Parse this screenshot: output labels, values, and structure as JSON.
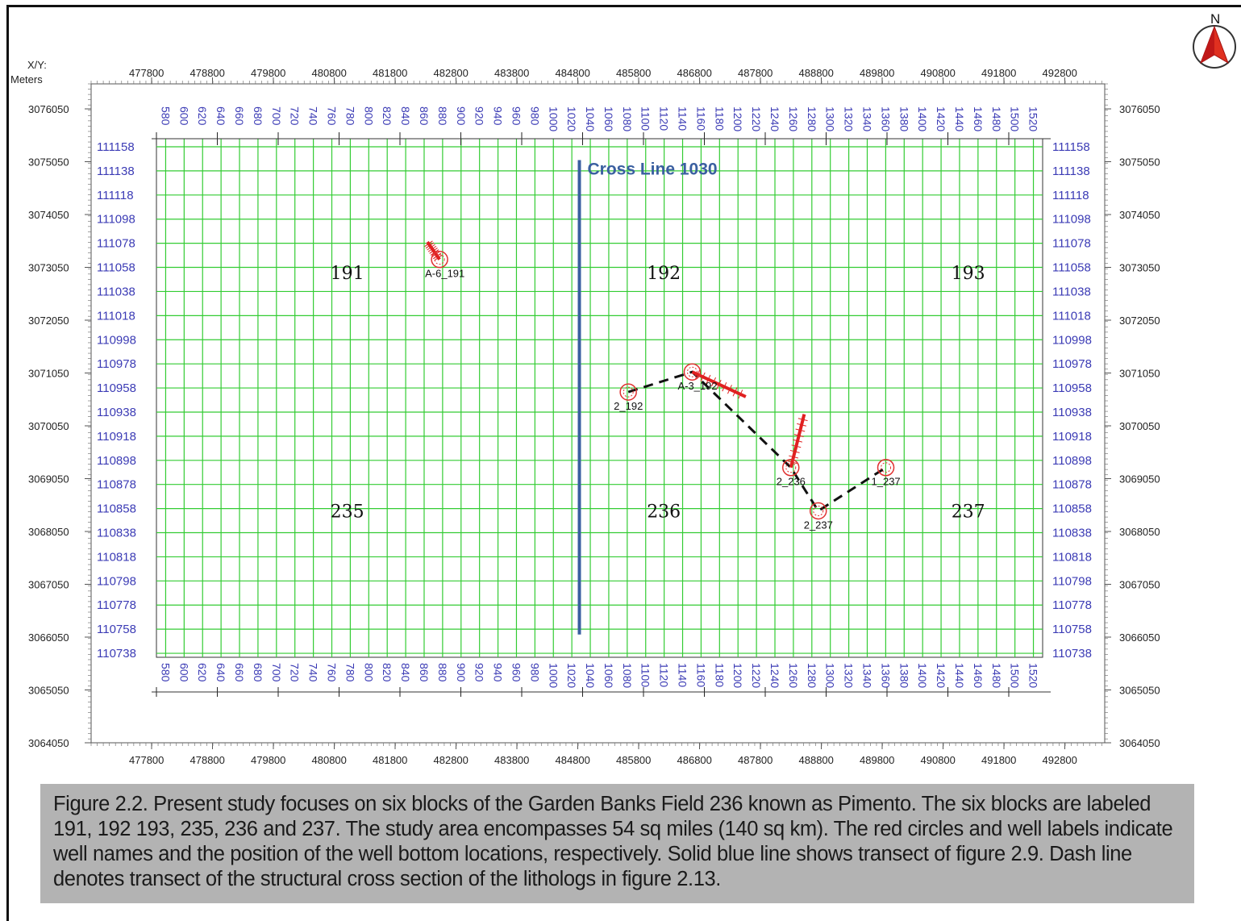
{
  "map": {
    "axis_unit_label": "X/Y:",
    "axis_unit_label2": "Meters",
    "north_label": "N",
    "x_ticks": [
      "477800",
      "478800",
      "479800",
      "480800",
      "481800",
      "482800",
      "483800",
      "484800",
      "485800",
      "486800",
      "487800",
      "488800",
      "489800",
      "490800",
      "491800",
      "492800"
    ],
    "y_ticks": [
      "3076050",
      "3075050",
      "3074050",
      "3073050",
      "3072050",
      "3071050",
      "3070050",
      "3069050",
      "3068050",
      "3067050",
      "3066050",
      "3065050",
      "3064050"
    ],
    "inline_labels": [
      "111158",
      "111138",
      "111118",
      "111098",
      "111078",
      "111058",
      "111038",
      "111018",
      "110998",
      "110978",
      "110958",
      "110938",
      "110918",
      "110898",
      "110878",
      "110858",
      "110838",
      "110818",
      "110798",
      "110778",
      "110758",
      "110738"
    ],
    "crossline_labels": [
      "580",
      "600",
      "620",
      "640",
      "660",
      "680",
      "700",
      "720",
      "740",
      "760",
      "780",
      "800",
      "820",
      "840",
      "860",
      "880",
      "900",
      "920",
      "940",
      "960",
      "980",
      "1000",
      "1020",
      "1040",
      "1060",
      "1080",
      "1100",
      "1120",
      "1140",
      "1160",
      "1180",
      "1200",
      "1220",
      "1240",
      "1260",
      "1280",
      "1300",
      "1320",
      "1340",
      "1360",
      "1380",
      "1400",
      "1420",
      "1440",
      "1460",
      "1480",
      "1500",
      "1520"
    ],
    "blocks": [
      {
        "name": "191",
        "x": 481000,
        "y": 3072950
      },
      {
        "name": "192",
        "x": 486200,
        "y": 3072950
      },
      {
        "name": "193",
        "x": 491200,
        "y": 3072950
      },
      {
        "name": "235",
        "x": 481000,
        "y": 3068440
      },
      {
        "name": "236",
        "x": 486200,
        "y": 3068440
      },
      {
        "name": "237",
        "x": 491200,
        "y": 3068440
      }
    ],
    "cross_line": {
      "label": "Cross Line 1030",
      "x": 484800,
      "y_top": 3075050,
      "y_bottom": 3066100
    },
    "wells": [
      {
        "name": "A-6_191",
        "x": 482530,
        "y": 3073200,
        "track_to_x": 482330,
        "track_to_y": 3073530
      },
      {
        "name": "2_192",
        "x": 485630,
        "y": 3070690
      },
      {
        "name": "A-3_192",
        "x": 486680,
        "y": 3071070,
        "track_to_x": 487560,
        "track_to_y": 3070600
      },
      {
        "name": "2_236",
        "x": 488300,
        "y": 3069260,
        "track_to_x": 488520,
        "track_to_y": 3070270
      },
      {
        "name": "2_237",
        "x": 488750,
        "y": 3068440
      },
      {
        "name": "1_237",
        "x": 489860,
        "y": 3069260
      }
    ],
    "transect_wells": [
      "2_192",
      "A-3_192",
      "2_236",
      "2_237",
      "1_237"
    ],
    "colors": {
      "grid": "#33cc33",
      "seismic_label": "#3b3bb5",
      "cross_line": "#3a5fa0",
      "well": "#e03030",
      "track": "#e02020",
      "transect": "#111111",
      "north_arrow": "#e03020"
    }
  },
  "caption": {
    "text": "Figure 2.2. Present study focuses on six blocks of the Garden Banks Field 236 known as Pimento. The six blocks are labeled 191, 192 193, 235, 236 and 237.  The study area encompasses 54 sq miles (140 sq km). The red circles and well labels indicate well names and the position of the well bottom locations, respectively.  Solid blue line shows transect of figure 2.9.  Dash line denotes transect of the structural cross section of the lithologs in figure 2.13."
  }
}
